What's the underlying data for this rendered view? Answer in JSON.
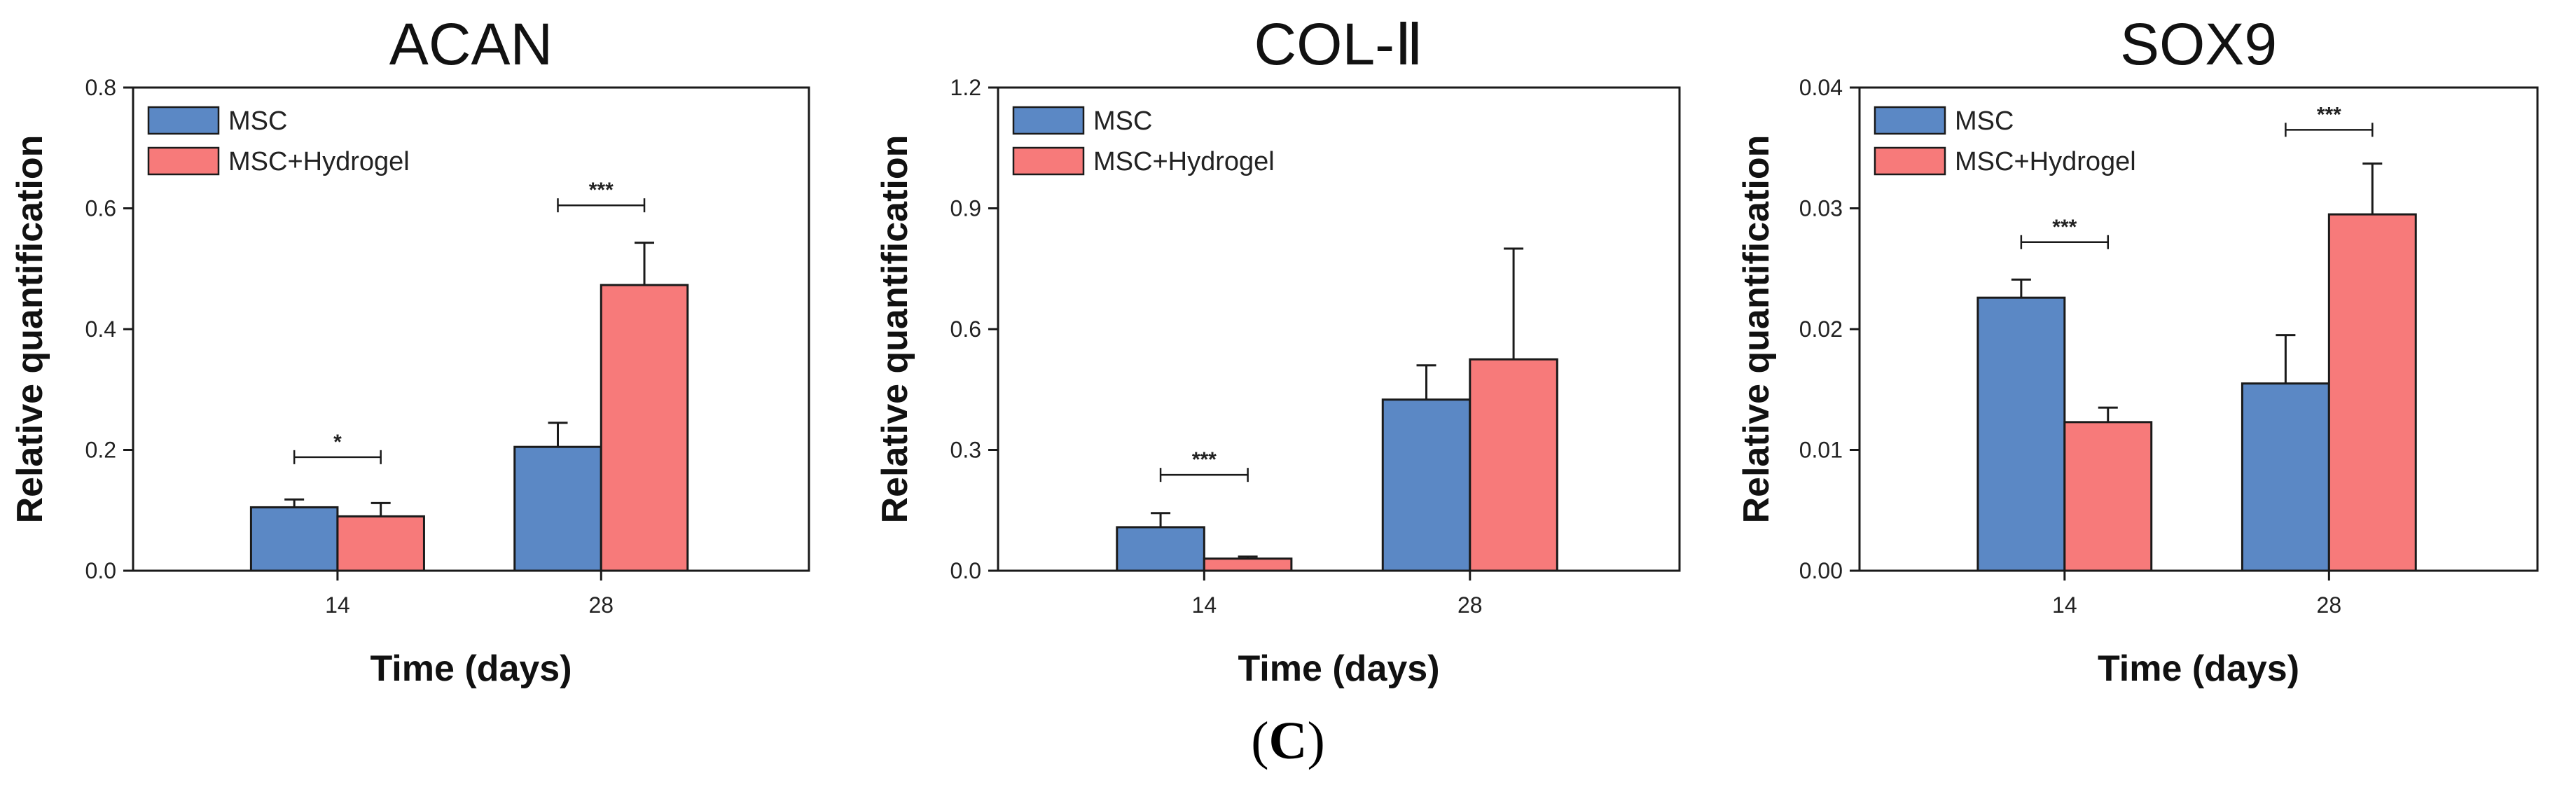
{
  "figure_label": {
    "open": "(",
    "letter": "C",
    "close": ")"
  },
  "colors": {
    "msc": "#5b88c5",
    "hydrogel": "#f77a7a",
    "stroke": "#1a1a1a"
  },
  "chart_data": [
    {
      "type": "bar",
      "title": "ACAN",
      "xlabel": "Time (days)",
      "ylabel": "Relative quantification",
      "categories": [
        "14",
        "28"
      ],
      "ylim": [
        0,
        0.8
      ],
      "yticks": [
        "0.0",
        "0.2",
        "0.4",
        "0.6",
        "0.8"
      ],
      "series": [
        {
          "name": "MSC",
          "values": [
            0.105,
            0.205
          ],
          "errors": [
            0.013,
            0.04
          ]
        },
        {
          "name": "MSC+Hydrogel",
          "values": [
            0.09,
            0.473
          ],
          "errors": [
            0.022,
            0.07
          ]
        }
      ],
      "significance": [
        {
          "category_index": 0,
          "label": "*",
          "y": 0.188
        },
        {
          "category_index": 1,
          "label": "***",
          "y": 0.605
        }
      ]
    },
    {
      "type": "bar",
      "title": "COL-Ⅱ",
      "xlabel": "Time (days)",
      "ylabel": "Relative quantification",
      "categories": [
        "14",
        "28"
      ],
      "ylim": [
        0,
        1.2
      ],
      "yticks": [
        "0.0",
        "0.3",
        "0.6",
        "0.9",
        "1.2"
      ],
      "series": [
        {
          "name": "MSC",
          "values": [
            0.108,
            0.425
          ],
          "errors": [
            0.035,
            0.085
          ]
        },
        {
          "name": "MSC+Hydrogel",
          "values": [
            0.03,
            0.525
          ],
          "errors": [
            0.005,
            0.275
          ]
        }
      ],
      "significance": [
        {
          "category_index": 0,
          "label": "***",
          "y": 0.238
        }
      ]
    },
    {
      "type": "bar",
      "title": "SOX9",
      "xlabel": "Time (days)",
      "ylabel": "Relative quantification",
      "categories": [
        "14",
        "28"
      ],
      "ylim": [
        0,
        0.04
      ],
      "yticks": [
        "0.00",
        "0.01",
        "0.02",
        "0.03",
        "0.04"
      ],
      "series": [
        {
          "name": "MSC",
          "values": [
            0.0226,
            0.0155
          ],
          "errors": [
            0.0015,
            0.004
          ]
        },
        {
          "name": "MSC+Hydrogel",
          "values": [
            0.0123,
            0.0295
          ],
          "errors": [
            0.0012,
            0.0042
          ]
        }
      ],
      "significance": [
        {
          "category_index": 0,
          "label": "***",
          "y": 0.0272
        },
        {
          "category_index": 1,
          "label": "***",
          "y": 0.0365
        }
      ]
    }
  ]
}
